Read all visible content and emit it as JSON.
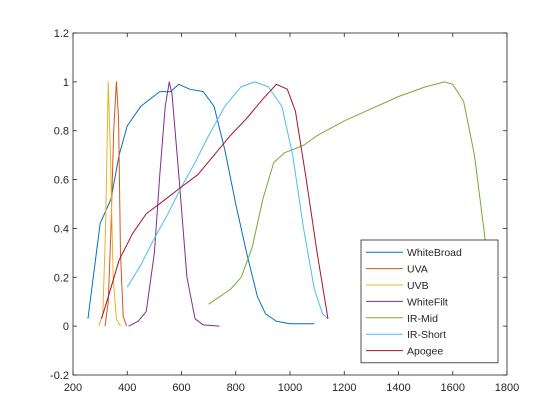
{
  "chart_data": {
    "type": "line",
    "title": "",
    "xlabel": "",
    "ylabel": "",
    "xlim": [
      200,
      1800
    ],
    "ylim": [
      -0.2,
      1.2
    ],
    "xticks": [
      200,
      400,
      600,
      800,
      1000,
      1200,
      1400,
      1600,
      1800
    ],
    "yticks": [
      -0.2,
      0,
      0.2,
      0.4,
      0.6,
      0.8,
      1,
      1.2
    ],
    "xtick_labels": [
      "200",
      "400",
      "600",
      "800",
      "1000",
      "1200",
      "1400",
      "1600",
      "1800"
    ],
    "ytick_labels": [
      "-0.2",
      "0",
      "0.2",
      "0.4",
      "0.6",
      "0.8",
      "1",
      "1.2"
    ],
    "grid": false,
    "legend_position": "bottom-right",
    "series": [
      {
        "name": "WhiteBroad",
        "color": "#0072BD",
        "points": [
          [
            255,
            0.03
          ],
          [
            300,
            0.42
          ],
          [
            340,
            0.52
          ],
          [
            370,
            0.7
          ],
          [
            400,
            0.82
          ],
          [
            450,
            0.9
          ],
          [
            520,
            0.96
          ],
          [
            560,
            0.96
          ],
          [
            590,
            0.99
          ],
          [
            630,
            0.97
          ],
          [
            680,
            0.96
          ],
          [
            720,
            0.9
          ],
          [
            760,
            0.72
          ],
          [
            800,
            0.5
          ],
          [
            840,
            0.3
          ],
          [
            880,
            0.12
          ],
          [
            910,
            0.05
          ],
          [
            950,
            0.02
          ],
          [
            1000,
            0.01
          ],
          [
            1090,
            0.01
          ]
        ]
      },
      {
        "name": "UVA",
        "color": "#D95319",
        "points": [
          [
            318,
            0.0
          ],
          [
            330,
            0.1
          ],
          [
            340,
            0.4
          ],
          [
            350,
            0.8
          ],
          [
            360,
            1.0
          ],
          [
            368,
            0.85
          ],
          [
            375,
            0.3
          ],
          [
            385,
            0.04
          ],
          [
            398,
            0.0
          ]
        ]
      },
      {
        "name": "UVB",
        "color": "#EDB120",
        "points": [
          [
            295,
            0.0
          ],
          [
            310,
            0.05
          ],
          [
            320,
            0.4
          ],
          [
            330,
            1.0
          ],
          [
            338,
            0.7
          ],
          [
            348,
            0.2
          ],
          [
            360,
            0.03
          ],
          [
            375,
            0.0
          ]
        ]
      },
      {
        "name": "WhiteFilt",
        "color": "#7E2F8E",
        "points": [
          [
            405,
            0.0
          ],
          [
            440,
            0.02
          ],
          [
            470,
            0.06
          ],
          [
            500,
            0.3
          ],
          [
            520,
            0.62
          ],
          [
            540,
            0.9
          ],
          [
            555,
            1.0
          ],
          [
            565,
            0.95
          ],
          [
            590,
            0.62
          ],
          [
            620,
            0.2
          ],
          [
            650,
            0.03
          ],
          [
            680,
            0.005
          ],
          [
            740,
            0.0
          ]
        ]
      },
      {
        "name": "IR-Mid",
        "color": "#77AC30",
        "points": [
          [
            700,
            0.09
          ],
          [
            740,
            0.12
          ],
          [
            780,
            0.15
          ],
          [
            820,
            0.2
          ],
          [
            860,
            0.32
          ],
          [
            900,
            0.52
          ],
          [
            940,
            0.67
          ],
          [
            980,
            0.71
          ],
          [
            1050,
            0.74
          ],
          [
            1100,
            0.78
          ],
          [
            1200,
            0.84
          ],
          [
            1300,
            0.89
          ],
          [
            1400,
            0.94
          ],
          [
            1500,
            0.98
          ],
          [
            1570,
            1.0
          ],
          [
            1600,
            0.99
          ],
          [
            1640,
            0.92
          ],
          [
            1680,
            0.7
          ],
          [
            1720,
            0.35
          ],
          [
            1750,
            0.05
          ]
        ]
      },
      {
        "name": "IR-Short",
        "color": "#4DBEEE",
        "points": [
          [
            400,
            0.16
          ],
          [
            450,
            0.25
          ],
          [
            500,
            0.36
          ],
          [
            550,
            0.46
          ],
          [
            600,
            0.57
          ],
          [
            650,
            0.67
          ],
          [
            700,
            0.78
          ],
          [
            760,
            0.9
          ],
          [
            820,
            0.98
          ],
          [
            870,
            1.0
          ],
          [
            920,
            0.98
          ],
          [
            970,
            0.9
          ],
          [
            1010,
            0.7
          ],
          [
            1050,
            0.4
          ],
          [
            1090,
            0.15
          ],
          [
            1120,
            0.05
          ],
          [
            1140,
            0.03
          ]
        ]
      },
      {
        "name": "Apogee",
        "color": "#A2142F",
        "points": [
          [
            305,
            0.03
          ],
          [
            330,
            0.12
          ],
          [
            370,
            0.27
          ],
          [
            420,
            0.38
          ],
          [
            470,
            0.46
          ],
          [
            530,
            0.51
          ],
          [
            600,
            0.57
          ],
          [
            660,
            0.62
          ],
          [
            720,
            0.7
          ],
          [
            780,
            0.78
          ],
          [
            840,
            0.85
          ],
          [
            900,
            0.93
          ],
          [
            950,
            0.99
          ],
          [
            990,
            0.97
          ],
          [
            1020,
            0.88
          ],
          [
            1060,
            0.6
          ],
          [
            1100,
            0.3
          ],
          [
            1140,
            0.03
          ]
        ]
      }
    ]
  }
}
